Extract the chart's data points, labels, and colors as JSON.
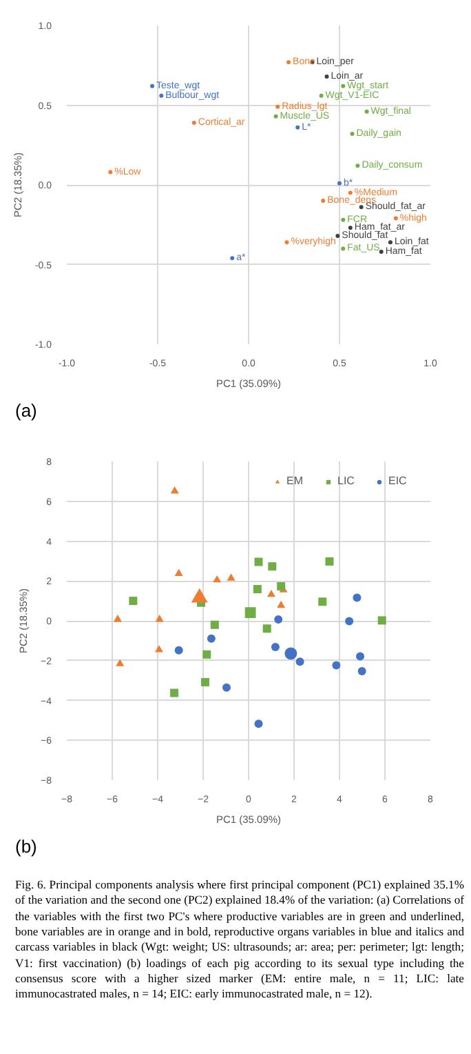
{
  "chart_data": [
    {
      "type": "scatter",
      "xlabel": "PC1 (35.09%)",
      "ylabel": "PC2 (18.35%)",
      "xlim": [
        -1,
        1
      ],
      "ylim": [
        -1,
        1
      ],
      "xticks": [
        {
          "value": -1,
          "label": "-1.0"
        },
        {
          "value": -0.5,
          "label": "-0.5"
        },
        {
          "value": 0,
          "label": "0.0"
        },
        {
          "value": 0.5,
          "label": "0.5"
        },
        {
          "value": 1,
          "label": "1.0"
        }
      ],
      "yticks": [
        {
          "value": -1,
          "label": "-1.0"
        },
        {
          "value": -0.5,
          "label": "-0.5"
        },
        {
          "value": 0,
          "label": "0.0"
        },
        {
          "value": 0.5,
          "label": "0.5"
        },
        {
          "value": 1,
          "label": "1.0"
        }
      ],
      "grid": true,
      "marker": "circle",
      "series": [
        {
          "color": "#70ad47",
          "x": [
            0.52,
            0.4,
            0.65,
            0.15,
            0.57,
            0.6,
            0.52,
            0.52
          ],
          "values": [
            0.62,
            0.56,
            0.46,
            0.43,
            0.32,
            0.12,
            -0.22,
            -0.4
          ],
          "value_labels": [
            "Wgt_start",
            "Wgt_V1-EIC",
            "Wgt_final",
            "Muscle_US",
            "Daily_gain",
            "Daily_consum",
            "FCR",
            "Fat_US"
          ]
        },
        {
          "color": "#ed7d31",
          "x": [
            0.22,
            0.16,
            -0.3,
            -0.76,
            0.56,
            0.41,
            0.81,
            0.21
          ],
          "values": [
            0.77,
            0.49,
            0.39,
            0.08,
            -0.05,
            -0.1,
            -0.21,
            -0.36
          ],
          "value_labels": [
            "Bone",
            "Radius_lgt",
            "Cortical_ar",
            "%Low",
            "%Medium",
            "Bone_dens",
            "%high",
            "%veryhigh"
          ]
        },
        {
          "color": "#4472c4",
          "x": [
            -0.53,
            -0.48,
            0.27,
            0.5,
            -0.09
          ],
          "values": [
            0.62,
            0.56,
            0.36,
            0.01,
            -0.46
          ],
          "value_labels": [
            "Teste_wgt",
            "Bulbour_wgt",
            "L*",
            "b*",
            "a*"
          ]
        },
        {
          "color": "#404040",
          "x": [
            0.35,
            0.43,
            0.62,
            0.56,
            0.49,
            0.78,
            0.73
          ],
          "values": [
            0.77,
            0.68,
            -0.14,
            -0.27,
            -0.32,
            -0.36,
            -0.42
          ],
          "value_labels": [
            "Loin_per",
            "Loin_ar",
            "Should_fat_ar",
            "Ham_fat_ar",
            "Should_fat",
            "Loin_fat",
            "Ham_fat"
          ]
        }
      ],
      "annotations": [
        "(a)"
      ]
    },
    {
      "type": "scatter",
      "xlabel": "PC1 (35.09%)",
      "ylabel": "PC2 (18.35%)",
      "xlim": [
        -8,
        8
      ],
      "ylim": [
        -8,
        8
      ],
      "xticks": [
        -8,
        -6,
        -4,
        -2,
        0,
        2,
        4,
        6,
        8
      ],
      "yticks": [
        -8,
        -6,
        -4,
        -2,
        0,
        2,
        4,
        6,
        8
      ],
      "grid": true,
      "legend": "top right",
      "series": [
        {
          "name": "EM",
          "color": "#ed7d31",
          "marker": "triangle",
          "x": [
            -3.25,
            -3.07,
            -1.39,
            -0.77,
            -5.76,
            -3.92,
            -3.94,
            -5.66,
            1.0,
            1.53,
            1.43
          ],
          "values": [
            6.51,
            2.37,
            2.05,
            2.14,
            0.07,
            0.07,
            -1.46,
            -2.16,
            1.32,
            1.55,
            0.77
          ]
        },
        {
          "name": "LIC",
          "color": "#70ad47",
          "marker": "square",
          "x": [
            0.44,
            1.04,
            3.56,
            0.39,
            1.43,
            -5.08,
            -2.09,
            3.25,
            5.87,
            -1.49,
            0.81,
            -1.84,
            -1.91,
            -3.27
          ],
          "values": [
            2.96,
            2.73,
            2.98,
            1.59,
            1.73,
            1.0,
            0.91,
            0.96,
            0.02,
            -0.2,
            -0.39,
            -1.69,
            -3.08,
            -3.62
          ]
        },
        {
          "name": "EIC",
          "color": "#4472c4",
          "marker": "circle",
          "x": [
            4.77,
            4.43,
            1.31,
            -1.64,
            -3.07,
            1.18,
            2.26,
            3.86,
            4.91,
            4.99,
            -0.97,
            0.44
          ],
          "values": [
            1.16,
            -0.02,
            0.07,
            -0.89,
            -1.48,
            -1.32,
            -2.05,
            -2.23,
            -1.78,
            -2.53,
            -3.35,
            -5.17
          ]
        },
        {
          "type": "bubble",
          "color": "#ed7d31",
          "marker": "triangle",
          "x": [
            -2.16
          ],
          "values": [
            1.16
          ],
          "sizes": [
            1
          ]
        },
        {
          "type": "bubble",
          "color": "#70ad47",
          "marker": "square",
          "x": [
            0.08
          ],
          "values": [
            0.41
          ],
          "sizes": [
            1
          ]
        },
        {
          "type": "bubble",
          "color": "#4472c4",
          "marker": "circle",
          "x": [
            1.86
          ],
          "values": [
            -1.64
          ],
          "sizes": [
            1
          ]
        }
      ],
      "annotations": [
        "(b)",
        "Fig. 6. Principal components analysis where first principal component (PC1) explained 35.1% of the variation and the second one (PC2) explained 18.4% of the variation: (a) Correlations of the variables with the first two PC's where productive variables are in green and underlined, bone variables are in orange and in bold, reproductive organs variables in blue and italics and carcass variables in black (Wgt: weight; US: ultrasounds; ar: area; per: perimeter; lgt: length; V1: first vaccination) (b) loadings of each pig according to its sexual type including the consensus score with a higher sized marker (EM: entire male, n = 11; LIC: late immunocastrated males, n = 14; EIC: early immunocastrated male, n = 12)."
      ]
    }
  ]
}
